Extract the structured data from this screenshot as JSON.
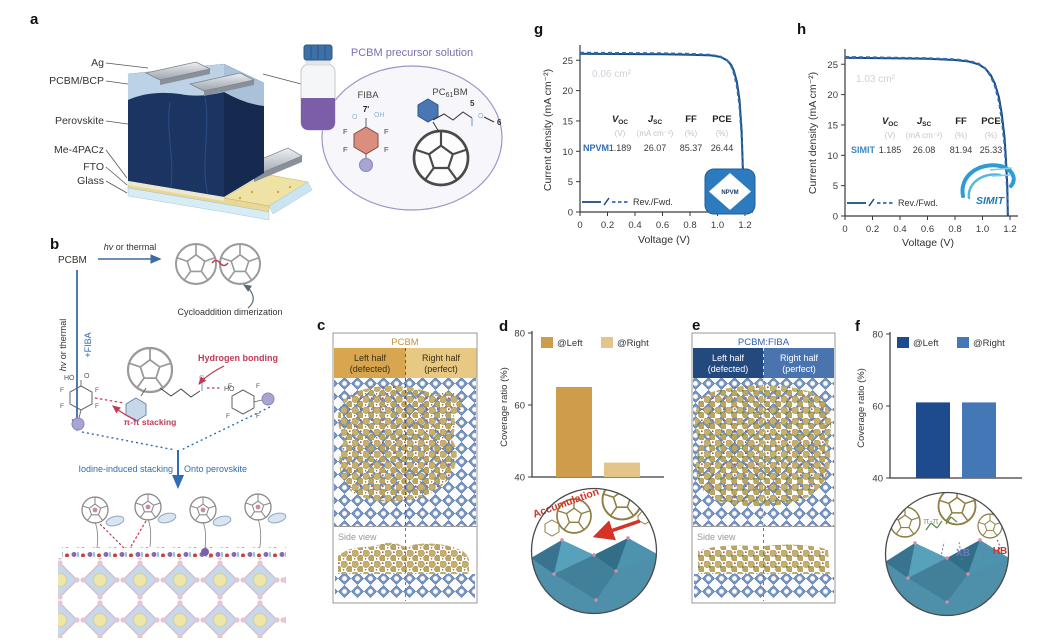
{
  "panels": {
    "a": {
      "label": "a",
      "layers": [
        "Ag",
        "PCBM/BCP",
        "Perovskite",
        "Me-4PACz",
        "FTO",
        "Glass"
      ],
      "solution": {
        "title": "PCBM precursor solution",
        "fiba_name": "FIBA",
        "pos7": "7'",
        "pcbm_pre": "PC",
        "pcbm_sub": "61",
        "pcbm_post": "BM",
        "c5": "5",
        "c6": "6",
        "atoms": {
          "f": "F",
          "i": "I",
          "o": "O",
          "oh": "OH"
        }
      }
    },
    "b": {
      "label": "b",
      "start": "PCBM",
      "hv": "hv",
      "hv_rest": " or thermal",
      "dimer_caption": "Cycloaddition dimerization",
      "plus_fiba": "+FIBA",
      "hbond": "Hydrogen bonding",
      "pipi": "π-π stacking",
      "iodine": "Iodine-induced stacking",
      "onto": "Onto perovskite",
      "atoms": {
        "ho": "HO",
        "o": "O",
        "f": "F",
        "i": "I"
      }
    },
    "c": {
      "label": "c",
      "title": "PCBM",
      "left1": "Left half",
      "left2": "(defected)",
      "right1": "Right half",
      "right2": "(perfect)",
      "side": "Side view"
    },
    "d": {
      "label": "d",
      "ylabel": "Coverage ratio (%)",
      "legend": [
        "@Left",
        "@Right"
      ],
      "inset_label": "Accumulation"
    },
    "e": {
      "label": "e",
      "title": "PCBM:FIBA",
      "left1": "Left half",
      "left2": "(defected)",
      "right1": "Right half",
      "right2": "(perfect)",
      "side": "Side view"
    },
    "f": {
      "label": "f",
      "ylabel": "Coverage ratio (%)",
      "legend": [
        "@Left",
        "@Right"
      ],
      "inset": {
        "pipi": "π-π",
        "xb": "XB",
        "hb": "HB"
      }
    },
    "g": {
      "label": "g",
      "area": "0.06 cm²",
      "ylabel": "Current density (mA cm⁻²)",
      "xlabel": "Voltage (V)",
      "legend": "Rev./Fwd.",
      "device": "NPVM",
      "logo_text": "NPVM",
      "table": {
        "h1v": "V",
        "h1s": "OC",
        "h2v": "J",
        "h2s": "SC",
        "h3": "FF",
        "h4": "PCE",
        "u1": "(V)",
        "u2": "(mA cm⁻²)",
        "u3": "(%)",
        "u4": "(%)",
        "values": [
          "1.189",
          "26.07",
          "85.37",
          "26.44"
        ]
      }
    },
    "h": {
      "label": "h",
      "area": "1.03 cm²",
      "ylabel": "Current density (mA cm⁻²)",
      "xlabel": "Voltage (V)",
      "legend": "Rev./Fwd.",
      "device": "SIMIT",
      "logo_text": "SIMIT",
      "table": {
        "h1v": "V",
        "h1s": "OC",
        "h2v": "J",
        "h2s": "SC",
        "h3": "FF",
        "h4": "PCE",
        "u1": "(V)",
        "u2": "(mA cm⁻²)",
        "u3": "(%)",
        "u4": "(%)",
        "values": [
          "1.185",
          "26.08",
          "81.94",
          "25.33"
        ]
      }
    }
  },
  "chart_data": [
    {
      "id": "jv-g",
      "type": "line",
      "title": "J-V curves of 0.06 cm² device (NPVM)",
      "xlabel": "Voltage (V)",
      "ylabel": "Current density (mA cm⁻²)",
      "xlim": [
        0,
        1.25
      ],
      "ylim": [
        0,
        27.5
      ],
      "grid": false,
      "xticks": [
        0,
        0.2,
        0.4,
        0.6,
        0.8,
        1.0,
        1.2
      ],
      "xtick_labels": [
        "0",
        "0.2",
        "0.4",
        "0.6",
        "0.8",
        "1.0",
        "1.2"
      ],
      "yticks": [
        0,
        5,
        10,
        15,
        20,
        25
      ],
      "legend": "Rev./Fwd.",
      "legend_position": "lower-left",
      "metrics": {
        "device": "NPVM",
        "voc_v": 1.189,
        "jsc_ma_cm2": 26.07,
        "ff_pct": 85.37,
        "pce_pct": 26.44,
        "area_cm2": 0.06
      },
      "series": [
        {
          "name": "Reverse",
          "style": "solid",
          "points": [
            [
              0,
              26.07
            ],
            [
              0.3,
              26.03
            ],
            [
              0.6,
              25.98
            ],
            [
              0.8,
              25.92
            ],
            [
              0.95,
              25.8
            ],
            [
              1.02,
              25.55
            ],
            [
              1.07,
              25.0
            ],
            [
              1.1,
              24.2
            ],
            [
              1.12,
              23.2
            ],
            [
              1.14,
              21.5
            ],
            [
              1.16,
              18.5
            ],
            [
              1.175,
              13.5
            ],
            [
              1.183,
              8.0
            ],
            [
              1.188,
              3.0
            ],
            [
              1.19,
              0
            ]
          ]
        },
        {
          "name": "Forward",
          "style": "dashed",
          "points": [
            [
              0,
              26.25
            ],
            [
              0.3,
              26.2
            ],
            [
              0.6,
              26.15
            ],
            [
              0.8,
              26.05
            ],
            [
              0.95,
              25.9
            ],
            [
              1.02,
              25.6
            ],
            [
              1.07,
              25.0
            ],
            [
              1.1,
              24.0
            ],
            [
              1.12,
              22.8
            ],
            [
              1.14,
              20.8
            ],
            [
              1.16,
              17.5
            ],
            [
              1.175,
              12.5
            ],
            [
              1.184,
              7.0
            ],
            [
              1.19,
              1.0
            ],
            [
              1.192,
              0
            ]
          ]
        }
      ]
    },
    {
      "id": "jv-h",
      "type": "line",
      "title": "J-V curves of 1.03 cm² device (SIMIT)",
      "xlabel": "Voltage (V)",
      "ylabel": "Current density (mA cm⁻²)",
      "xlim": [
        0,
        1.25
      ],
      "ylim": [
        0,
        27.5
      ],
      "grid": false,
      "xticks": [
        0,
        0.2,
        0.4,
        0.6,
        0.8,
        1.0,
        1.2
      ],
      "xtick_labels": [
        "0",
        "0.2",
        "0.4",
        "0.6",
        "0.8",
        "1.0",
        "1.2"
      ],
      "yticks": [
        0,
        5,
        10,
        15,
        20,
        25
      ],
      "legend": "Rev./Fwd.",
      "legend_position": "lower-left",
      "metrics": {
        "device": "SIMIT",
        "voc_v": 1.185,
        "jsc_ma_cm2": 26.08,
        "ff_pct": 81.94,
        "pce_pct": 25.33,
        "area_cm2": 1.03
      },
      "series": [
        {
          "name": "Reverse",
          "style": "solid",
          "points": [
            [
              0,
              26.08
            ],
            [
              0.3,
              26.0
            ],
            [
              0.6,
              25.9
            ],
            [
              0.8,
              25.7
            ],
            [
              0.9,
              25.45
            ],
            [
              0.97,
              25.0
            ],
            [
              1.02,
              24.3
            ],
            [
              1.06,
              23.2
            ],
            [
              1.09,
              21.8
            ],
            [
              1.12,
              19.5
            ],
            [
              1.14,
              16.8
            ],
            [
              1.16,
              13.0
            ],
            [
              1.17,
              9.5
            ],
            [
              1.18,
              5.0
            ],
            [
              1.185,
              0
            ]
          ]
        },
        {
          "name": "Forward",
          "style": "dashed",
          "points": [
            [
              0,
              26.2
            ],
            [
              0.3,
              26.1
            ],
            [
              0.6,
              26.0
            ],
            [
              0.8,
              25.8
            ],
            [
              0.9,
              25.55
            ],
            [
              0.97,
              25.1
            ],
            [
              1.02,
              24.3
            ],
            [
              1.06,
              23.0
            ],
            [
              1.09,
              21.4
            ],
            [
              1.12,
              18.8
            ],
            [
              1.14,
              15.8
            ],
            [
              1.16,
              11.8
            ],
            [
              1.17,
              8.0
            ],
            [
              1.18,
              3.5
            ],
            [
              1.183,
              0
            ]
          ]
        }
      ]
    },
    {
      "id": "bars-d",
      "type": "bar",
      "categories": [
        "@Left",
        "@Right"
      ],
      "values": [
        65,
        44
      ],
      "colors": [
        "#CE9C4A",
        "#E3C58A"
      ],
      "ylabel": "Coverage ratio (%)",
      "ylim": [
        40,
        80
      ],
      "yticks": [
        40,
        60,
        80
      ],
      "legend_position": "top",
      "grid": false
    },
    {
      "id": "bars-f",
      "type": "bar",
      "categories": [
        "@Left",
        "@Right"
      ],
      "values": [
        61,
        61
      ],
      "colors": [
        "#1E4B8D",
        "#4477B5"
      ],
      "ylabel": "Coverage ratio (%)",
      "ylim": [
        40,
        80
      ],
      "yticks": [
        40,
        60,
        80
      ],
      "legend_position": "top",
      "grid": false
    }
  ],
  "colors": {
    "curve_solid": "#17497F",
    "curve_dashed": "#2F6CB0",
    "npvm_text": "#2E6DB4",
    "simit_text": "#3C87C6",
    "gold_dark": "#CE9C4A",
    "gold_light": "#E3C58A",
    "blue_dark": "#1E4B8D",
    "blue_mid": "#4477B5",
    "red_accent": "#C13A56",
    "purple_title": "#7C6FB0"
  }
}
